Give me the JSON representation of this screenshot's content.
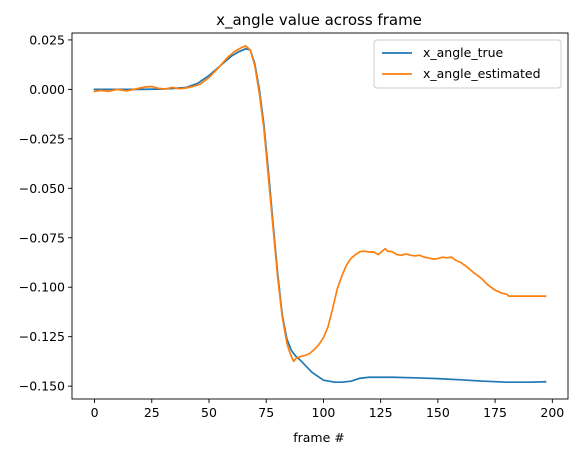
{
  "chart_data": {
    "type": "line",
    "title": "x_angle value across frame",
    "xlabel": "frame #",
    "ylabel": "",
    "xlim": [
      -9.85,
      206.85
    ],
    "ylim": [
      -0.1565,
      0.0285
    ],
    "xticks": [
      0,
      25,
      50,
      75,
      100,
      125,
      150,
      175,
      200
    ],
    "xtick_labels": [
      "0",
      "25",
      "50",
      "75",
      "100",
      "125",
      "150",
      "175",
      "200"
    ],
    "yticks": [
      0.025,
      0.0,
      -0.025,
      -0.05,
      -0.075,
      -0.1,
      -0.125,
      -0.15
    ],
    "ytick_labels": [
      "0.025",
      "0.000",
      "−0.025",
      "−0.050",
      "−0.075",
      "−0.100",
      "−0.125",
      "−0.150"
    ],
    "grid": false,
    "legend_position": "upper right",
    "series": [
      {
        "name": "x_angle_true",
        "color": "#1f77b4",
        "x": [
          0,
          10,
          20,
          30,
          35,
          40,
          45,
          50,
          55,
          60,
          63,
          66,
          68,
          70,
          72,
          74,
          76,
          78,
          80,
          82,
          84,
          86,
          88,
          90,
          95,
          100,
          105,
          108,
          112,
          116,
          120,
          130,
          140,
          150,
          160,
          170,
          180,
          190,
          197
        ],
        "y": [
          0.0,
          0.0,
          0.0,
          0.0002,
          0.0005,
          0.001,
          0.003,
          0.007,
          0.012,
          0.017,
          0.019,
          0.0205,
          0.02,
          0.013,
          0.0,
          -0.018,
          -0.042,
          -0.068,
          -0.093,
          -0.114,
          -0.126,
          -0.132,
          -0.135,
          -0.137,
          -0.143,
          -0.147,
          -0.148,
          -0.148,
          -0.1475,
          -0.146,
          -0.1455,
          -0.1455,
          -0.1458,
          -0.1462,
          -0.1468,
          -0.1475,
          -0.148,
          -0.148,
          -0.1478
        ]
      },
      {
        "name": "x_angle_estimated",
        "color": "#ff7f0e",
        "x": [
          0,
          3,
          6,
          10,
          14,
          18,
          22,
          25,
          28,
          31,
          34,
          37,
          40,
          43,
          46,
          50,
          55,
          58,
          61,
          64,
          66,
          68,
          70,
          72,
          74,
          76,
          78,
          80,
          82,
          84,
          85,
          86,
          87,
          88,
          89,
          90,
          92,
          94,
          96,
          98,
          100,
          102,
          104,
          106,
          108,
          110,
          112,
          114,
          116,
          118,
          120,
          122,
          124,
          126,
          127,
          128,
          130,
          132,
          134,
          136,
          138,
          140,
          142,
          144,
          146,
          148,
          150,
          152,
          154,
          156,
          158,
          160,
          163,
          166,
          169,
          172,
          175,
          178,
          180,
          181,
          185,
          190,
          197
        ],
        "y": [
          -0.001,
          -0.0005,
          -0.001,
          0.0,
          -0.0008,
          0.0002,
          0.0012,
          0.0015,
          0.0005,
          0.0002,
          0.001,
          0.0003,
          0.0007,
          0.0015,
          0.0025,
          0.006,
          0.012,
          0.016,
          0.019,
          0.021,
          0.022,
          0.02,
          0.012,
          -0.002,
          -0.02,
          -0.045,
          -0.07,
          -0.095,
          -0.115,
          -0.128,
          -0.132,
          -0.135,
          -0.1375,
          -0.136,
          -0.1355,
          -0.135,
          -0.1345,
          -0.1335,
          -0.1315,
          -0.129,
          -0.1255,
          -0.12,
          -0.111,
          -0.101,
          -0.0945,
          -0.089,
          -0.0855,
          -0.0835,
          -0.082,
          -0.0818,
          -0.0822,
          -0.0822,
          -0.0835,
          -0.0815,
          -0.0805,
          -0.0818,
          -0.082,
          -0.0835,
          -0.0838,
          -0.0832,
          -0.0838,
          -0.0842,
          -0.0838,
          -0.0848,
          -0.0852,
          -0.0858,
          -0.0855,
          -0.0848,
          -0.0852,
          -0.0848,
          -0.0865,
          -0.0875,
          -0.09,
          -0.093,
          -0.0955,
          -0.099,
          -0.1015,
          -0.103,
          -0.1035,
          -0.1045,
          -0.1045,
          -0.1045,
          -0.1045
        ]
      }
    ]
  }
}
